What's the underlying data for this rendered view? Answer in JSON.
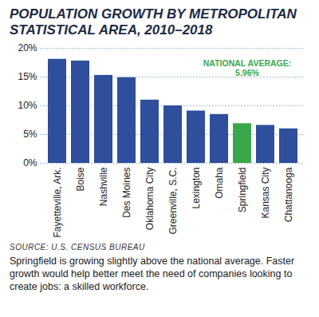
{
  "chart_data": {
    "type": "bar",
    "title": "POPULATION GROWTH BY METROPOLITAN STATISTICAL AREA, 2010–2018",
    "categories": [
      "Fayetteville, Ark.",
      "Boise",
      "Nashville",
      "Des Moines",
      "Oklahoma City",
      "Greenville, S.C.",
      "Lexington",
      "Omaha",
      "Springfield",
      "Kansas City",
      "Chattanooga"
    ],
    "values": [
      18.1,
      17.8,
      15.3,
      14.9,
      11.0,
      10.0,
      9.1,
      8.5,
      6.9,
      6.6,
      6.0
    ],
    "colors": [
      "#2f4e9c",
      "#2f4e9c",
      "#2f4e9c",
      "#2f4e9c",
      "#2f4e9c",
      "#2f4e9c",
      "#2f4e9c",
      "#2f4e9c",
      "#3aa84a",
      "#2f4e9c",
      "#2f4e9c"
    ],
    "ylim": [
      0,
      20
    ],
    "yticks": [
      {
        "value": 0,
        "label": "0%"
      },
      {
        "value": 5,
        "label": "5%"
      },
      {
        "value": 10,
        "label": "10%"
      },
      {
        "value": 15,
        "label": "15%"
      },
      {
        "value": 20,
        "label": "20%"
      }
    ],
    "grid": true,
    "annotation": {
      "text": "NATIONAL AVERAGE: 5.96%",
      "category": "Springfield"
    },
    "source": "SOURCE: U.S. CENSUS BUREAU",
    "caption": "Springfield is growing slightly above the national average. Faster growth would help better meet the need of companies looking to create jobs: a skilled workforce."
  }
}
